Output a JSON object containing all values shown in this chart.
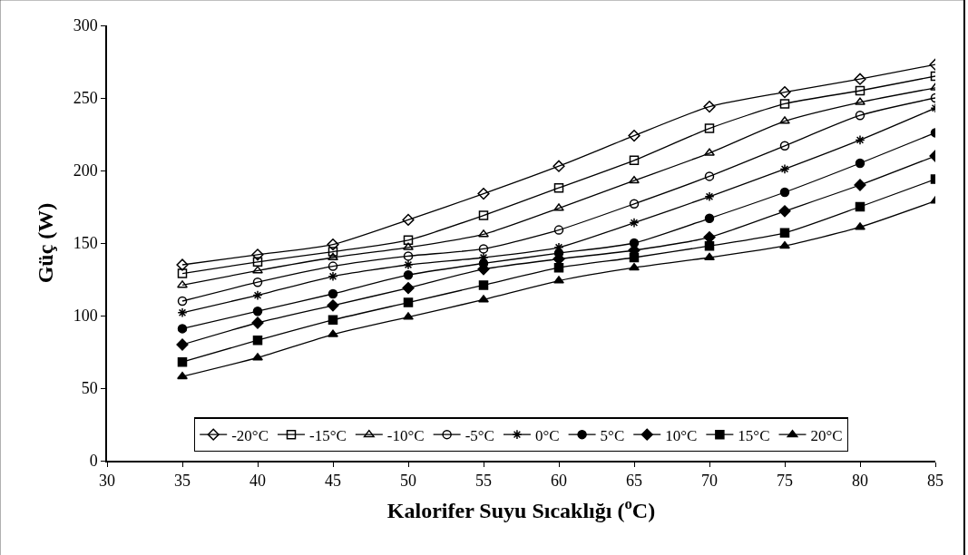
{
  "chart_data": {
    "type": "line",
    "xlabel": "Kalorifer Suyu Sıcaklığı ($^{o}$C)",
    "ylabel": "Güç (W)",
    "x": [
      35,
      40,
      45,
      50,
      55,
      60,
      65,
      70,
      75,
      80,
      85
    ],
    "xlim": [
      30,
      85
    ],
    "xticks": [
      30,
      35,
      40,
      45,
      50,
      55,
      60,
      65,
      70,
      75,
      80,
      85
    ],
    "ylim": [
      0,
      300
    ],
    "yticks": [
      0,
      50,
      100,
      150,
      200,
      250,
      300
    ],
    "legend": "bottom",
    "line_style": "solid",
    "series": [
      {
        "name": "-20°C",
        "color": "#000000",
        "marker": "diamond",
        "values": [
          135,
          142,
          149,
          166,
          184,
          203,
          224,
          244,
          254,
          263,
          273
        ]
      },
      {
        "name": "-15°C",
        "color": "#000000",
        "marker": "square",
        "values": [
          129,
          137,
          144,
          152,
          169,
          188,
          207,
          229,
          246,
          255,
          265
        ]
      },
      {
        "name": "-10°C",
        "color": "#000000",
        "marker": "triangle",
        "values": [
          121,
          131,
          140,
          147,
          156,
          174,
          193,
          212,
          234,
          247,
          257
        ]
      },
      {
        "name": "-5°C",
        "color": "#000000",
        "marker": "circle",
        "values": [
          110,
          123,
          134,
          141,
          146,
          159,
          177,
          196,
          217,
          238,
          250
        ]
      },
      {
        "name": "0°C",
        "color": "#000000",
        "marker": "cross",
        "values": [
          102,
          114,
          127,
          135,
          140,
          147,
          164,
          182,
          201,
          221,
          243
        ]
      },
      {
        "name": "5°C",
        "color": "#000000",
        "marker": "circle",
        "values": [
          91,
          103,
          115,
          128,
          136,
          143,
          150,
          167,
          185,
          205,
          226
        ]
      },
      {
        "name": "10°C",
        "color": "#000000",
        "marker": "diamond",
        "values": [
          80,
          95,
          107,
          119,
          132,
          139,
          145,
          154,
          172,
          190,
          210
        ]
      },
      {
        "name": "15°C",
        "color": "#000000",
        "marker": "square",
        "values": [
          68,
          83,
          97,
          109,
          121,
          133,
          140,
          148,
          157,
          175,
          194
        ]
      },
      {
        "name": "20°C",
        "color": "#000000",
        "marker": "triangle",
        "values": [
          58,
          71,
          87,
          99,
          111,
          124,
          133,
          140,
          148,
          161,
          179
        ]
      }
    ]
  }
}
